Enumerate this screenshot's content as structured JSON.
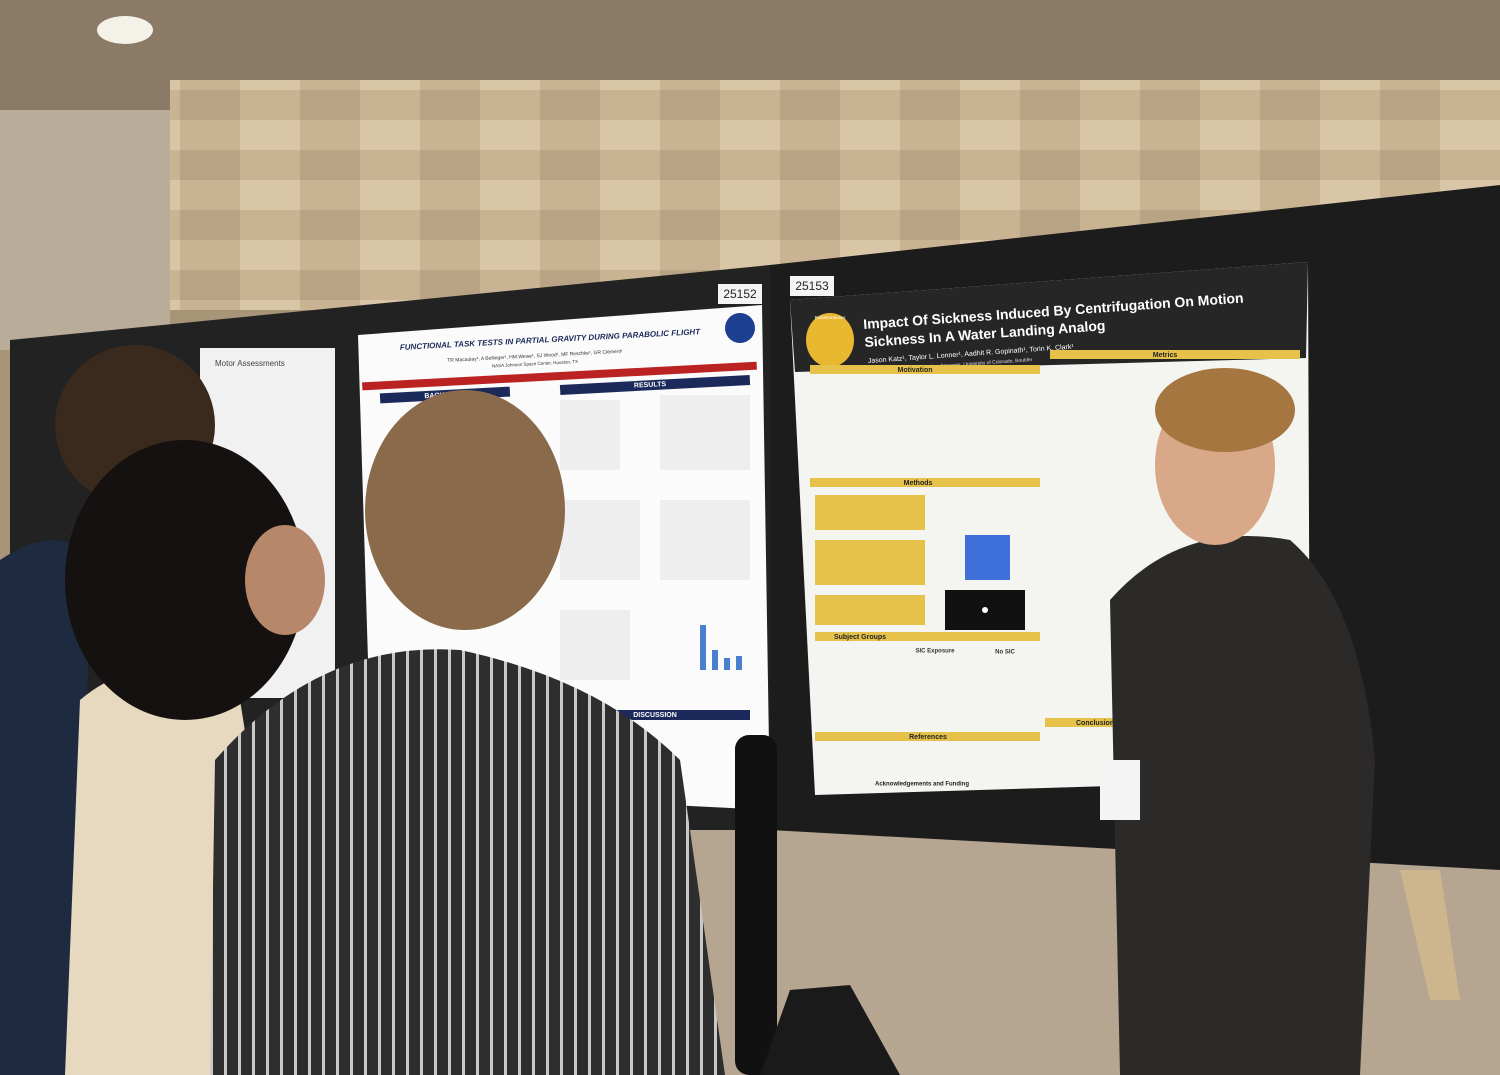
{
  "boards": {
    "left_number": "25152",
    "right_number": "25153"
  },
  "small_poster": {
    "heading": "Motor Assessments"
  },
  "left_poster": {
    "title": "FUNCTIONAL TASK TESTS IN PARTIAL GRAVITY DURING PARABOLIC FLIGHT",
    "authors": "TR Macaulay¹, A Bollinger¹, HM Weise¹, SJ Wood¹, MF Reschke¹, GR Clément¹",
    "affiliation": "NASA Johnson Space Center, Houston, TX",
    "sections": [
      "BACKGROUND",
      "RESULTS",
      "DISCUSSION"
    ]
  },
  "right_poster": {
    "title_line1": "Impact Of Sickness Induced By Centrifugation On Motion",
    "title_line2": "Sickness In A Water Landing Analog",
    "authors": "Jason Katz¹, Taylor L. Lonner¹, Aadhit R. Gopinath¹, Torin K. Clark¹",
    "affiliation": "¹Smead Aerospace Engineering Sciences, University of Colorado, Boulder",
    "logo": "Bioastronautics",
    "sections": [
      "Motivation",
      "Metrics",
      "Methods",
      "Subject Groups",
      "References",
      "Conclusions",
      "Acknowledgements and Funding"
    ],
    "groups": [
      "SIC Exposure",
      "No SIC"
    ]
  }
}
